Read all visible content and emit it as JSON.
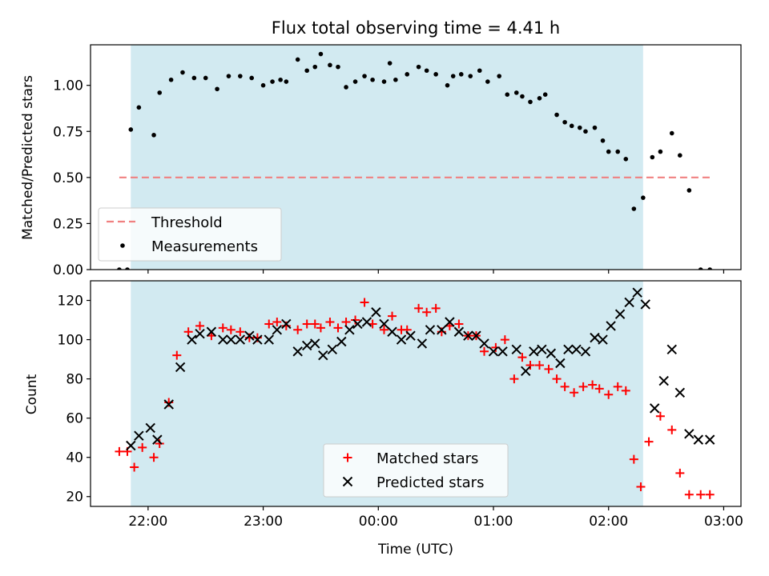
{
  "chart_data": [
    {
      "type": "scatter",
      "title": "Flux total observing time = 4.41 h",
      "xlabel": "",
      "ylabel": "Matched/Predicted stars",
      "ylim": [
        0,
        1.22
      ],
      "yticks": [
        "0.00",
        "0.25",
        "0.50",
        "0.75",
        "1.00"
      ],
      "ytick_values": [
        0,
        0.25,
        0.5,
        0.75,
        1.0
      ],
      "xlim_hours": [
        21.5,
        27.15
      ],
      "shaded_span_hours": [
        21.85,
        26.3
      ],
      "shade_color": "#add8e6",
      "grid": false,
      "legend_position": "lower-left",
      "threshold": {
        "name": "Threshold",
        "value": 0.5,
        "x_start": 21.75,
        "x_end": 26.9,
        "color": "#f08080"
      },
      "series": [
        {
          "name": "Measurements",
          "color": "#000000",
          "marker": "dot",
          "x": [
            21.75,
            21.82,
            21.85,
            21.92,
            22.05,
            22.1,
            22.2,
            22.3,
            22.4,
            22.5,
            22.6,
            22.7,
            22.8,
            22.9,
            23.0,
            23.08,
            23.15,
            23.2,
            23.3,
            23.38,
            23.45,
            23.5,
            23.58,
            23.65,
            23.72,
            23.8,
            23.88,
            23.95,
            24.05,
            24.1,
            24.15,
            24.25,
            24.35,
            24.42,
            24.5,
            24.6,
            24.65,
            24.72,
            24.8,
            24.88,
            24.95,
            25.05,
            25.12,
            25.2,
            25.25,
            25.32,
            25.4,
            25.45,
            25.55,
            25.62,
            25.68,
            25.75,
            25.8,
            25.88,
            25.95,
            26.0,
            26.08,
            26.15,
            26.22,
            26.3,
            26.38,
            26.45,
            26.55,
            26.62,
            26.7,
            26.8,
            26.88
          ],
          "y": [
            0.0,
            0.0,
            0.76,
            0.88,
            0.73,
            0.96,
            1.03,
            1.07,
            1.04,
            1.04,
            0.98,
            1.05,
            1.05,
            1.04,
            1.0,
            1.02,
            1.03,
            1.02,
            1.14,
            1.08,
            1.1,
            1.17,
            1.11,
            1.1,
            0.99,
            1.02,
            1.05,
            1.03,
            1.02,
            1.12,
            1.03,
            1.06,
            1.1,
            1.08,
            1.06,
            1.0,
            1.05,
            1.06,
            1.05,
            1.08,
            1.02,
            1.05,
            0.95,
            0.96,
            0.94,
            0.91,
            0.93,
            0.95,
            0.84,
            0.8,
            0.78,
            0.77,
            0.75,
            0.77,
            0.7,
            0.64,
            0.64,
            0.6,
            0.33,
            0.39,
            0.61,
            0.64,
            0.74,
            0.62,
            0.43,
            0.0,
            0.0
          ]
        }
      ]
    },
    {
      "type": "scatter",
      "title": "",
      "xlabel": "Time (UTC)",
      "ylabel": "Count",
      "ylim": [
        15,
        130
      ],
      "yticks": [
        "20",
        "40",
        "60",
        "80",
        "100",
        "120"
      ],
      "ytick_values": [
        20,
        40,
        60,
        80,
        100,
        120
      ],
      "xticks": [
        "22:00",
        "23:00",
        "00:00",
        "01:00",
        "02:00",
        "03:00"
      ],
      "xtick_hours": [
        22,
        23,
        24,
        25,
        26,
        27
      ],
      "xlim_hours": [
        21.5,
        27.15
      ],
      "shaded_span_hours": [
        21.85,
        26.3
      ],
      "shade_color": "#add8e6",
      "grid": false,
      "legend_position": "lower-center",
      "series": [
        {
          "name": "Matched stars",
          "color": "#ff0000",
          "marker": "plus",
          "x": [
            21.75,
            21.82,
            21.88,
            21.95,
            22.05,
            22.1,
            22.18,
            22.25,
            22.35,
            22.45,
            22.55,
            22.65,
            22.72,
            22.8,
            22.88,
            22.95,
            23.05,
            23.12,
            23.2,
            23.3,
            23.38,
            23.45,
            23.5,
            23.58,
            23.65,
            23.72,
            23.8,
            23.88,
            23.95,
            24.05,
            24.12,
            24.2,
            24.25,
            24.35,
            24.42,
            24.5,
            24.55,
            24.62,
            24.7,
            24.78,
            24.85,
            24.92,
            25.02,
            25.1,
            25.18,
            25.25,
            25.32,
            25.4,
            25.48,
            25.55,
            25.62,
            25.7,
            25.78,
            25.86,
            25.92,
            26.0,
            26.08,
            26.15,
            26.22,
            26.28,
            26.35,
            26.45,
            26.55,
            26.62,
            26.7,
            26.8,
            26.88
          ],
          "y": [
            43,
            43,
            35,
            45,
            40,
            47,
            68,
            92,
            104,
            107,
            102,
            106,
            105,
            104,
            101,
            101,
            108,
            109,
            107,
            105,
            108,
            108,
            106,
            109,
            106,
            109,
            110,
            119,
            108,
            105,
            112,
            105,
            105,
            116,
            114,
            116,
            104,
            107,
            108,
            102,
            102,
            94,
            96,
            100,
            80,
            91,
            87,
            87,
            85,
            80,
            76,
            73,
            76,
            77,
            75,
            72,
            76,
            74,
            39,
            25,
            48,
            61,
            54,
            32,
            21,
            21,
            21
          ]
        },
        {
          "name": "Predicted stars",
          "color": "#000000",
          "marker": "x",
          "x": [
            21.85,
            21.92,
            22.02,
            22.08,
            22.18,
            22.28,
            22.38,
            22.45,
            22.55,
            22.65,
            22.72,
            22.8,
            22.88,
            22.95,
            23.05,
            23.12,
            23.2,
            23.3,
            23.38,
            23.45,
            23.52,
            23.6,
            23.68,
            23.75,
            23.82,
            23.9,
            23.98,
            24.05,
            24.12,
            24.2,
            24.28,
            24.38,
            24.45,
            24.55,
            24.62,
            24.7,
            24.78,
            24.85,
            24.92,
            25.0,
            25.08,
            25.2,
            25.28,
            25.35,
            25.42,
            25.5,
            25.58,
            25.65,
            25.72,
            25.8,
            25.88,
            25.95,
            26.02,
            26.1,
            26.18,
            26.25,
            26.32,
            26.4,
            26.48,
            26.55,
            26.62,
            26.7,
            26.78,
            26.88
          ],
          "y": [
            46,
            51,
            55,
            49,
            67,
            86,
            100,
            103,
            104,
            100,
            100,
            100,
            102,
            100,
            100,
            105,
            108,
            94,
            97,
            98,
            92,
            95,
            99,
            105,
            108,
            109,
            114,
            108,
            104,
            100,
            102,
            98,
            105,
            105,
            109,
            104,
            102,
            102,
            98,
            94,
            94,
            95,
            84,
            94,
            95,
            93,
            88,
            95,
            95,
            94,
            101,
            100,
            107,
            113,
            119,
            124,
            118,
            65,
            79,
            95,
            73,
            52,
            49,
            49
          ]
        }
      ]
    }
  ]
}
